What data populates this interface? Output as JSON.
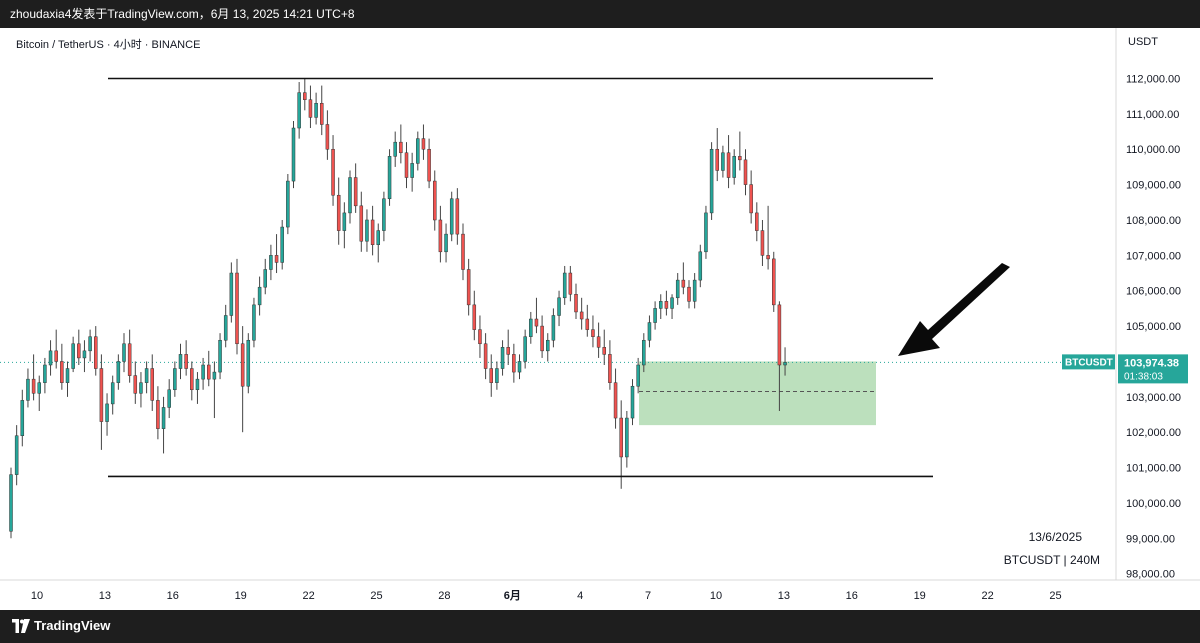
{
  "header": {
    "publisher": "zhoudaxia4发表于TradingView.com，6月 13, 2025 14:21 UTC+8"
  },
  "footer": {
    "brand": "TradingView"
  },
  "chart_data": {
    "type": "candlestick",
    "title": "Bitcoin / TetherUS · 4小时 · BINANCE",
    "symbol": "BTCUSDT",
    "currency": "USDT",
    "last_price": "103,974.38",
    "countdown": "01:38:03",
    "annotation_date": "13/6/2025",
    "annotation_symbol": "BTCUSDT | 240M",
    "y_ticks": [
      "112,000.00",
      "111,000.00",
      "110,000.00",
      "109,000.00",
      "108,000.00",
      "107,000.00",
      "106,000.00",
      "105,000.00",
      "103,000.00",
      "102,000.00",
      "101,000.00",
      "100,000.00",
      "99,000.00",
      "98,000.00"
    ],
    "x_ticks": [
      "10",
      "13",
      "16",
      "19",
      "22",
      "25",
      "28",
      "6月",
      "4",
      "7",
      "10",
      "13",
      "16",
      "19",
      "22",
      "25"
    ],
    "resistance_line": 112000,
    "support_line": 100750,
    "demand_zone": [
      102200,
      104000
    ],
    "zone_midline": 103150,
    "colors": {
      "up": "#26a69a",
      "down": "#ef5350",
      "zone": "#a5d6a7",
      "price_tag": "#26a69a"
    },
    "series": [
      {
        "values": [
          [
            99200,
            101000,
            99000,
            100800
          ],
          [
            100800,
            102200,
            100500,
            101900
          ],
          [
            101900,
            103200,
            101600,
            102900
          ],
          [
            102900,
            103800,
            102700,
            103500
          ],
          [
            103500,
            104200,
            102900,
            103100
          ],
          [
            103100,
            103600,
            102600,
            103400
          ],
          [
            103400,
            104100,
            103100,
            103900
          ],
          [
            103900,
            104600,
            103600,
            104300
          ],
          [
            104300,
            104900,
            103800,
            104000
          ],
          [
            104000,
            104500,
            103200,
            103400
          ],
          [
            103400,
            104000,
            103000,
            103800
          ],
          [
            103800,
            104700,
            103700,
            104500
          ],
          [
            104500,
            104900,
            103900,
            104100
          ],
          [
            104100,
            104600,
            103700,
            104300
          ],
          [
            104300,
            104900,
            104000,
            104700
          ],
          [
            104700,
            105000,
            103600,
            103800
          ],
          [
            103800,
            104200,
            101500,
            102300
          ],
          [
            102300,
            103100,
            101900,
            102800
          ],
          [
            102800,
            103600,
            102500,
            103400
          ],
          [
            103400,
            104200,
            103200,
            104000
          ],
          [
            104000,
            104800,
            103700,
            104500
          ],
          [
            104500,
            104900,
            103400,
            103600
          ],
          [
            103600,
            104000,
            102800,
            103100
          ],
          [
            103100,
            103700,
            102700,
            103400
          ],
          [
            103400,
            104000,
            103100,
            103800
          ],
          [
            103800,
            104200,
            102600,
            102900
          ],
          [
            102900,
            103300,
            101800,
            102100
          ],
          [
            102100,
            103000,
            101400,
            102700
          ],
          [
            102700,
            103500,
            102400,
            103200
          ],
          [
            103200,
            104000,
            103000,
            103800
          ],
          [
            103800,
            104500,
            103500,
            104200
          ],
          [
            104200,
            104600,
            103600,
            103800
          ],
          [
            103800,
            104000,
            102900,
            103200
          ],
          [
            103200,
            103700,
            102800,
            103500
          ],
          [
            103500,
            104100,
            103200,
            103900
          ],
          [
            103900,
            104300,
            103300,
            103500
          ],
          [
            103500,
            104000,
            102400,
            103700
          ],
          [
            103700,
            104800,
            103500,
            104600
          ],
          [
            104600,
            105600,
            104400,
            105300
          ],
          [
            105300,
            106800,
            105100,
            106500
          ],
          [
            106500,
            106900,
            104200,
            104500
          ],
          [
            104500,
            105000,
            102000,
            103300
          ],
          [
            103300,
            104800,
            103100,
            104600
          ],
          [
            104600,
            105800,
            104400,
            105600
          ],
          [
            105600,
            106400,
            105300,
            106100
          ],
          [
            106100,
            106900,
            105900,
            106600
          ],
          [
            106600,
            107300,
            106300,
            107000
          ],
          [
            107000,
            107600,
            106500,
            106800
          ],
          [
            106800,
            108000,
            106600,
            107800
          ],
          [
            107800,
            109300,
            107600,
            109100
          ],
          [
            109100,
            110800,
            108900,
            110600
          ],
          [
            110600,
            111900,
            110300,
            111600
          ],
          [
            111600,
            112000,
            111100,
            111400
          ],
          [
            111400,
            111800,
            110600,
            110900
          ],
          [
            110900,
            111600,
            110700,
            111300
          ],
          [
            111300,
            111800,
            110400,
            110700
          ],
          [
            110700,
            111100,
            109700,
            110000
          ],
          [
            110000,
            110400,
            108400,
            108700
          ],
          [
            108700,
            109200,
            107300,
            107700
          ],
          [
            107700,
            108500,
            107200,
            108200
          ],
          [
            108200,
            109400,
            107900,
            109200
          ],
          [
            109200,
            109600,
            108200,
            108400
          ],
          [
            108400,
            108800,
            107100,
            107400
          ],
          [
            107400,
            108300,
            107100,
            108000
          ],
          [
            108000,
            108400,
            107000,
            107300
          ],
          [
            107300,
            107900,
            106800,
            107700
          ],
          [
            107700,
            108800,
            107400,
            108600
          ],
          [
            108600,
            110000,
            108400,
            109800
          ],
          [
            109800,
            110500,
            109500,
            110200
          ],
          [
            110200,
            110700,
            109600,
            109900
          ],
          [
            109900,
            110200,
            108900,
            109200
          ],
          [
            109200,
            109900,
            108800,
            109600
          ],
          [
            109600,
            110500,
            109400,
            110300
          ],
          [
            110300,
            110700,
            109700,
            110000
          ],
          [
            110000,
            110300,
            108900,
            109100
          ],
          [
            109100,
            109400,
            107700,
            108000
          ],
          [
            108000,
            108400,
            106800,
            107100
          ],
          [
            107100,
            107900,
            106800,
            107600
          ],
          [
            107600,
            108800,
            107400,
            108600
          ],
          [
            108600,
            108900,
            107300,
            107600
          ],
          [
            107600,
            107900,
            106300,
            106600
          ],
          [
            106600,
            106900,
            105300,
            105600
          ],
          [
            105600,
            106000,
            104600,
            104900
          ],
          [
            104900,
            105300,
            104100,
            104500
          ],
          [
            104500,
            104800,
            103500,
            103800
          ],
          [
            103800,
            104200,
            103000,
            103400
          ],
          [
            103400,
            104000,
            103200,
            103800
          ],
          [
            103800,
            104600,
            103600,
            104400
          ],
          [
            104400,
            104900,
            103900,
            104200
          ],
          [
            104200,
            104500,
            103400,
            103700
          ],
          [
            103700,
            104200,
            103500,
            104000
          ],
          [
            104000,
            104900,
            103800,
            104700
          ],
          [
            104700,
            105400,
            104500,
            105200
          ],
          [
            105200,
            105800,
            104800,
            105000
          ],
          [
            105000,
            105300,
            104100,
            104300
          ],
          [
            104300,
            104800,
            104000,
            104600
          ],
          [
            104600,
            105500,
            104400,
            105300
          ],
          [
            105300,
            106000,
            105000,
            105800
          ],
          [
            105800,
            106700,
            105600,
            106500
          ],
          [
            106500,
            106700,
            105700,
            105900
          ],
          [
            105900,
            106200,
            105200,
            105400
          ],
          [
            105400,
            105800,
            104900,
            105200
          ],
          [
            105200,
            105600,
            104700,
            104900
          ],
          [
            104900,
            105300,
            104400,
            104700
          ],
          [
            104700,
            105100,
            104100,
            104400
          ],
          [
            104400,
            104900,
            103900,
            104200
          ],
          [
            104200,
            104600,
            103200,
            103400
          ],
          [
            103400,
            103800,
            102100,
            102400
          ],
          [
            102400,
            102900,
            100400,
            101300
          ],
          [
            101300,
            102600,
            101000,
            102400
          ],
          [
            102400,
            103500,
            102200,
            103300
          ],
          [
            103300,
            104100,
            103100,
            103900
          ],
          [
            103900,
            104800,
            103700,
            104600
          ],
          [
            104600,
            105300,
            104400,
            105100
          ],
          [
            105100,
            105700,
            104900,
            105500
          ],
          [
            105500,
            105900,
            105200,
            105700
          ],
          [
            105700,
            106000,
            105300,
            105500
          ],
          [
            105500,
            105900,
            105200,
            105800
          ],
          [
            105800,
            106500,
            105600,
            106300
          ],
          [
            106300,
            106800,
            105900,
            106100
          ],
          [
            106100,
            106300,
            105500,
            105700
          ],
          [
            105700,
            106500,
            105500,
            106300
          ],
          [
            106300,
            107300,
            106100,
            107100
          ],
          [
            107100,
            108400,
            106900,
            108200
          ],
          [
            108200,
            110200,
            108000,
            110000
          ],
          [
            110000,
            110600,
            109100,
            109400
          ],
          [
            109400,
            110100,
            109200,
            109900
          ],
          [
            109900,
            110400,
            108900,
            109200
          ],
          [
            109200,
            110000,
            109000,
            109800
          ],
          [
            109800,
            110500,
            109400,
            109700
          ],
          [
            109700,
            110000,
            108700,
            109000
          ],
          [
            109000,
            109400,
            107900,
            108200
          ],
          [
            108200,
            108500,
            107400,
            107700
          ],
          [
            107700,
            108000,
            106700,
            107000
          ],
          [
            107000,
            108400,
            106600,
            106900
          ],
          [
            106900,
            107100,
            105400,
            105600
          ],
          [
            105600,
            105700,
            102600,
            103900
          ],
          [
            103900,
            104400,
            103600,
            103974
          ]
        ]
      }
    ]
  }
}
